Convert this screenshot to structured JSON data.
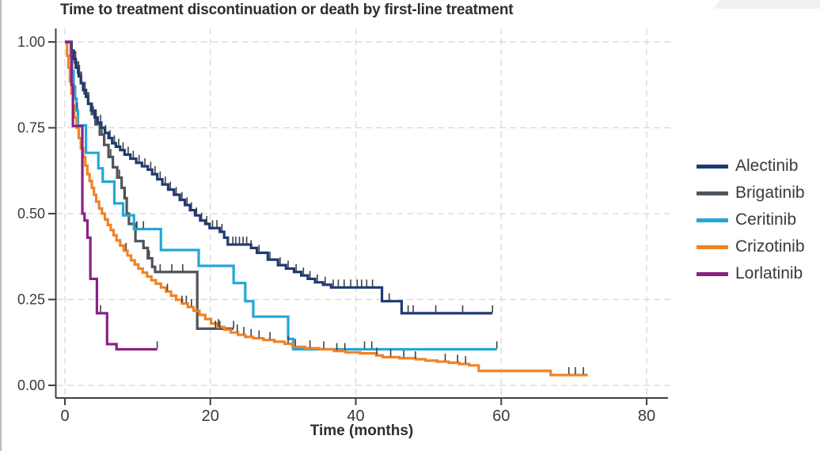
{
  "page": {
    "background": "#ffffff"
  },
  "chart_data": {
    "type": "line",
    "subtype": "kaplan-meier-step",
    "title": "Time to treatment discontinuation or death by first-line treatment",
    "xlabel": "Time (months)",
    "ylabel": "",
    "xlim": [
      0,
      80
    ],
    "ylim": [
      0,
      1
    ],
    "grid": "dashed-both-axes",
    "legend_position": "right",
    "axis_color": "#3f4245",
    "grid_color": "#d6d6d6",
    "tick_text_color": "#3a3a3a",
    "censor_mark_color": "#3e4146",
    "x_ticks": [
      {
        "label": "0",
        "value": 0
      },
      {
        "label": "20",
        "value": 20
      },
      {
        "label": "40",
        "value": 40
      },
      {
        "label": "60",
        "value": 60
      },
      {
        "label": "80",
        "value": 80
      }
    ],
    "y_ticks": [
      {
        "label": "0.00",
        "value": 0
      },
      {
        "label": "0.25",
        "value": 0.25
      },
      {
        "label": "0.50",
        "value": 0.5
      },
      {
        "label": "0.75",
        "value": 0.75
      },
      {
        "label": "1.00",
        "value": 1
      }
    ],
    "series": [
      {
        "name": "Brigatinib",
        "color": "#4e555e",
        "points": [
          [
            0,
            1.0
          ],
          [
            0.9,
            0.97
          ],
          [
            1.4,
            0.94
          ],
          [
            1.8,
            0.91
          ],
          [
            2.2,
            0.88
          ],
          [
            2.7,
            0.85
          ],
          [
            3.2,
            0.82
          ],
          [
            3.7,
            0.79
          ],
          [
            4.2,
            0.76
          ],
          [
            4.8,
            0.73
          ],
          [
            5.4,
            0.7
          ],
          [
            6.0,
            0.665
          ],
          [
            6.6,
            0.635
          ],
          [
            7.2,
            0.605
          ],
          [
            7.8,
            0.575
          ],
          [
            8.2,
            0.545
          ],
          [
            8.5,
            0.5
          ],
          [
            8.8,
            0.47
          ],
          [
            9.7,
            0.42
          ],
          [
            10.8,
            0.4
          ],
          [
            11.4,
            0.37
          ],
          [
            12.0,
            0.345
          ],
          [
            12.4,
            0.33
          ],
          [
            18.2,
            0.165
          ],
          [
            23.2,
            0.165
          ]
        ],
        "censor_marks": [
          2.0,
          3.9,
          5.1,
          6.3,
          7.5,
          8.3,
          11.6,
          13.1,
          14.7,
          16.2,
          20.7,
          21.3,
          23.2
        ]
      },
      {
        "name": "Ceritinib",
        "color": "#22a7d8",
        "points": [
          [
            0,
            1.0
          ],
          [
            0.8,
            0.96
          ],
          [
            1.0,
            0.915
          ],
          [
            1.2,
            0.87
          ],
          [
            1.4,
            0.835
          ],
          [
            1.6,
            0.8
          ],
          [
            1.8,
            0.757
          ],
          [
            2.9,
            0.677
          ],
          [
            4.6,
            0.632
          ],
          [
            5.2,
            0.593
          ],
          [
            6.8,
            0.53
          ],
          [
            8.0,
            0.495
          ],
          [
            9.5,
            0.455
          ],
          [
            13.2,
            0.394
          ],
          [
            18.4,
            0.348
          ],
          [
            23.2,
            0.298
          ],
          [
            24.8,
            0.245
          ],
          [
            25.9,
            0.2
          ],
          [
            30.7,
            0.135
          ],
          [
            31.4,
            0.105
          ],
          [
            59.4,
            0.105
          ]
        ],
        "censor_marks": [
          1.7,
          9.9,
          10.8,
          41.2,
          42.2,
          59.4
        ]
      },
      {
        "name": "Crizotinib",
        "color": "#f08326",
        "points": [
          [
            0,
            1.0
          ],
          [
            0.3,
            0.96
          ],
          [
            0.5,
            0.925
          ],
          [
            0.7,
            0.885
          ],
          [
            0.9,
            0.85
          ],
          [
            1.1,
            0.815
          ],
          [
            1.3,
            0.78
          ],
          [
            1.6,
            0.75
          ],
          [
            1.9,
            0.72
          ],
          [
            2.2,
            0.69
          ],
          [
            2.5,
            0.665
          ],
          [
            2.8,
            0.64
          ],
          [
            3.1,
            0.615
          ],
          [
            3.4,
            0.595
          ],
          [
            3.7,
            0.575
          ],
          [
            4.0,
            0.555
          ],
          [
            4.3,
            0.535
          ],
          [
            4.7,
            0.515
          ],
          [
            5.1,
            0.5
          ],
          [
            5.5,
            0.483
          ],
          [
            5.9,
            0.467
          ],
          [
            6.3,
            0.452
          ],
          [
            6.7,
            0.437
          ],
          [
            7.1,
            0.422
          ],
          [
            7.6,
            0.407
          ],
          [
            8.1,
            0.392
          ],
          [
            8.6,
            0.378
          ],
          [
            9.1,
            0.364
          ],
          [
            9.6,
            0.352
          ],
          [
            10.1,
            0.34
          ],
          [
            10.7,
            0.328
          ],
          [
            11.3,
            0.317
          ],
          [
            11.9,
            0.306
          ],
          [
            12.5,
            0.296
          ],
          [
            13.2,
            0.285
          ],
          [
            13.9,
            0.273
          ],
          [
            14.6,
            0.261
          ],
          [
            15.3,
            0.249
          ],
          [
            16.1,
            0.238
          ],
          [
            16.9,
            0.228
          ],
          [
            17.7,
            0.217
          ],
          [
            18.5,
            0.205
          ],
          [
            19.3,
            0.193
          ],
          [
            20.1,
            0.18
          ],
          [
            21.0,
            0.17
          ],
          [
            21.9,
            0.162
          ],
          [
            22.8,
            0.154
          ],
          [
            23.8,
            0.147
          ],
          [
            24.8,
            0.141
          ],
          [
            25.9,
            0.137
          ],
          [
            27.3,
            0.132
          ],
          [
            28.8,
            0.127
          ],
          [
            30.2,
            0.121
          ],
          [
            31.3,
            0.112
          ],
          [
            33.0,
            0.108
          ],
          [
            35.0,
            0.105
          ],
          [
            37.0,
            0.1
          ],
          [
            38.6,
            0.096
          ],
          [
            40.6,
            0.093
          ],
          [
            42.8,
            0.087
          ],
          [
            43.7,
            0.082
          ],
          [
            46.0,
            0.079
          ],
          [
            48.2,
            0.076
          ],
          [
            49.6,
            0.072
          ],
          [
            51.2,
            0.069
          ],
          [
            52.8,
            0.066
          ],
          [
            54.2,
            0.062
          ],
          [
            55.6,
            0.058
          ],
          [
            56.9,
            0.042
          ],
          [
            66.8,
            0.03
          ],
          [
            71.9,
            0.03
          ]
        ],
        "censor_marks": [
          8.4,
          14.1,
          16.1,
          16.7,
          17.4,
          21.1,
          23.7,
          24.6,
          25.6,
          26.7,
          28.2,
          30.7,
          31.7,
          33.7,
          35.6,
          37.4,
          38.5,
          42.9,
          44.8,
          46.6,
          48.2,
          52.3,
          54.0,
          55.1,
          69.3,
          70.2,
          71.3
        ]
      },
      {
        "name": "Alectinib",
        "color": "#1f3a72",
        "points": [
          [
            0,
            1.0
          ],
          [
            0.9,
            0.975
          ],
          [
            1.2,
            0.95
          ],
          [
            1.5,
            0.925
          ],
          [
            1.9,
            0.9
          ],
          [
            2.2,
            0.88
          ],
          [
            2.5,
            0.86
          ],
          [
            2.9,
            0.84
          ],
          [
            3.2,
            0.82
          ],
          [
            3.6,
            0.8
          ],
          [
            4.1,
            0.78
          ],
          [
            4.5,
            0.765
          ],
          [
            5.0,
            0.75
          ],
          [
            5.5,
            0.735
          ],
          [
            6.0,
            0.72
          ],
          [
            6.5,
            0.705
          ],
          [
            7.0,
            0.695
          ],
          [
            7.6,
            0.685
          ],
          [
            8.2,
            0.672
          ],
          [
            9.0,
            0.66
          ],
          [
            9.8,
            0.648
          ],
          [
            10.6,
            0.638
          ],
          [
            11.4,
            0.628
          ],
          [
            12.0,
            0.615
          ],
          [
            12.7,
            0.6
          ],
          [
            13.4,
            0.585
          ],
          [
            14.2,
            0.57
          ],
          [
            15.0,
            0.555
          ],
          [
            15.8,
            0.54
          ],
          [
            16.5,
            0.525
          ],
          [
            17.2,
            0.51
          ],
          [
            17.9,
            0.495
          ],
          [
            18.6,
            0.48
          ],
          [
            19.3,
            0.47
          ],
          [
            19.9,
            0.458
          ],
          [
            21.3,
            0.447
          ],
          [
            21.9,
            0.43
          ],
          [
            22.4,
            0.41
          ],
          [
            25.6,
            0.4
          ],
          [
            26.4,
            0.386
          ],
          [
            27.9,
            0.366
          ],
          [
            29.3,
            0.35
          ],
          [
            30.4,
            0.34
          ],
          [
            31.5,
            0.33
          ],
          [
            32.5,
            0.32
          ],
          [
            33.4,
            0.31
          ],
          [
            34.4,
            0.3
          ],
          [
            35.5,
            0.293
          ],
          [
            36.6,
            0.285
          ],
          [
            43.6,
            0.245
          ],
          [
            46.3,
            0.21
          ],
          [
            58.8,
            0.21
          ]
        ],
        "censor_marks": [
          1.0,
          2.3,
          3.3,
          4.3,
          4.9,
          5.6,
          6.2,
          6.8,
          7.4,
          8.0,
          8.7,
          9.4,
          10.2,
          11.0,
          11.8,
          12.4,
          13.1,
          13.8,
          14.5,
          15.3,
          16.1,
          16.8,
          17.4,
          18.1,
          18.8,
          19.5,
          20.3,
          20.9,
          21.6,
          23.1,
          23.5,
          24.0,
          24.5,
          25.0,
          25.6,
          26.7,
          28.2,
          29.6,
          30.7,
          31.8,
          32.8,
          33.7,
          34.7,
          35.8,
          36.9,
          37.6,
          38.4,
          39.3,
          40.2,
          40.8,
          41.5,
          42.3,
          44.6,
          47.2,
          47.9,
          51.0,
          54.7,
          58.8
        ]
      },
      {
        "name": "Lorlatinib",
        "color": "#8a2183",
        "points": [
          [
            0,
            1.0
          ],
          [
            0.9,
            0.875
          ],
          [
            1.1,
            0.755
          ],
          [
            2.4,
            0.5
          ],
          [
            2.7,
            0.48
          ],
          [
            3.1,
            0.43
          ],
          [
            3.5,
            0.31
          ],
          [
            4.4,
            0.21
          ],
          [
            5.8,
            0.12
          ],
          [
            7.1,
            0.105
          ],
          [
            12.7,
            0.105
          ]
        ],
        "censor_marks": [
          4.9,
          12.7
        ]
      }
    ],
    "legend_order": [
      "Alectinib",
      "Brigatinib",
      "Ceritinib",
      "Crizotinib",
      "Lorlatinib"
    ]
  }
}
